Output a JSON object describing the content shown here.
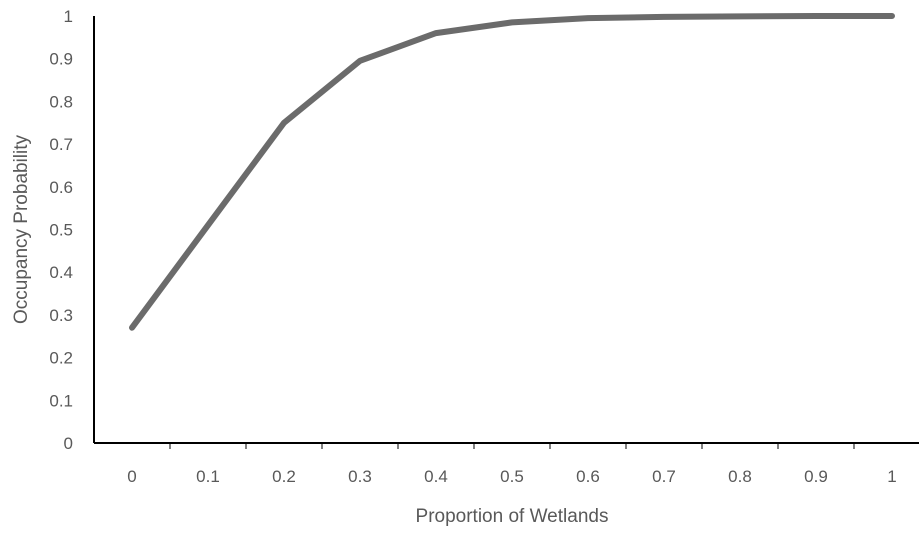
{
  "chart_data": {
    "type": "line",
    "title": "",
    "xlabel": "Proportion of Wetlands",
    "ylabel": "Occupancy Probability",
    "xlim": [
      0,
      1
    ],
    "ylim": [
      0,
      1
    ],
    "xticks": [
      "0",
      "0.1",
      "0.2",
      "0.3",
      "0.4",
      "0.5",
      "0.6",
      "0.7",
      "0.8",
      "0.9",
      "1"
    ],
    "yticks": [
      "0",
      "0.1",
      "0.2",
      "0.3",
      "0.4",
      "0.5",
      "0.6",
      "0.7",
      "0.8",
      "0.9",
      "1"
    ],
    "grid": false,
    "legend": "none",
    "series": [
      {
        "color": "#6b6b6b",
        "x": [
          0,
          0.1,
          0.2,
          0.3,
          0.4,
          0.5,
          0.6,
          0.7,
          0.8,
          0.9,
          1
        ],
        "y": [
          0.27,
          0.51,
          0.75,
          0.895,
          0.96,
          0.985,
          0.995,
          0.998,
          0.999,
          1.0,
          1.0
        ]
      }
    ]
  }
}
